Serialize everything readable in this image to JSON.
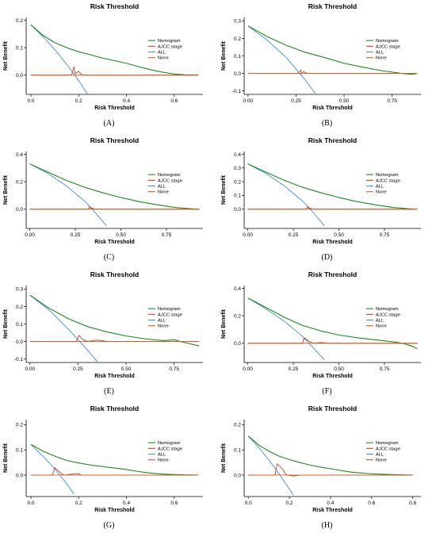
{
  "colors": {
    "nomogram": "#1a8c1a",
    "ajcc": "#c0441a",
    "all": "#3c8fd6",
    "none": "#d35a1e"
  },
  "chart_data": [
    {
      "type": "line",
      "title": "Risk Threshold",
      "xlabel": "Risk Threshold",
      "ylabel": "Net Benefit",
      "caption": "(A)",
      "xlim": [
        -0.02,
        0.72
      ],
      "ylim": [
        -0.07,
        0.21
      ],
      "xticks": [
        0.0,
        0.2,
        0.4,
        0.6
      ],
      "xtick_labels": [
        "0.0",
        "0.2",
        "0.4",
        "0.6"
      ],
      "yticks": [
        0.0,
        0.1,
        0.2
      ],
      "ytick_labels": [
        "0.0",
        "0.1",
        "0.2"
      ],
      "legend": [
        "Nomogram",
        "AJCC stage",
        "ALL",
        "None"
      ],
      "series": [
        {
          "name": "Nomogram",
          "x": [
            0.0,
            0.05,
            0.1,
            0.15,
            0.2,
            0.25,
            0.3,
            0.35,
            0.4,
            0.45,
            0.5,
            0.55,
            0.6,
            0.65,
            0.7
          ],
          "y": [
            0.183,
            0.145,
            0.118,
            0.1,
            0.085,
            0.074,
            0.062,
            0.053,
            0.043,
            0.031,
            0.02,
            0.011,
            0.004,
            0.001,
            0.001
          ]
        },
        {
          "name": "AJCC stage",
          "x": [
            0.0,
            0.17,
            0.18,
            0.185,
            0.19,
            0.2,
            0.21,
            0.22,
            0.7
          ],
          "y": [
            0.0,
            0.0,
            0.03,
            0.005,
            0.008,
            0.014,
            0.004,
            0.0,
            0.0
          ]
        },
        {
          "name": "ALL",
          "x": [
            0.0,
            0.05,
            0.1,
            0.15,
            0.2,
            0.24
          ],
          "y": [
            0.183,
            0.14,
            0.093,
            0.039,
            -0.02,
            -0.073
          ]
        },
        {
          "name": "None",
          "x": [
            0.0,
            0.7
          ],
          "y": [
            0.0,
            0.0
          ]
        }
      ]
    },
    {
      "type": "line",
      "title": "Risk Threshold",
      "xlabel": "Risk Threshold",
      "ylabel": "Net Benefit",
      "caption": "(B)",
      "xlim": [
        -0.02,
        0.9
      ],
      "ylim": [
        -0.12,
        0.32
      ],
      "xticks": [
        0.0,
        0.25,
        0.5,
        0.75
      ],
      "xtick_labels": [
        "0.00",
        "0.25",
        "0.50",
        "0.75"
      ],
      "yticks": [
        -0.1,
        0.0,
        0.1,
        0.2,
        0.3
      ],
      "ytick_labels": [
        "-0.1",
        "0.0",
        "0.1",
        "0.2",
        "0.3"
      ],
      "legend": [
        "Nomogram",
        "AJCC stage",
        "ALL",
        "None"
      ],
      "series": [
        {
          "name": "Nomogram",
          "x": [
            0.0,
            0.1,
            0.2,
            0.3,
            0.4,
            0.5,
            0.6,
            0.7,
            0.8,
            0.85,
            0.88
          ],
          "y": [
            0.272,
            0.21,
            0.16,
            0.12,
            0.09,
            0.058,
            0.035,
            0.015,
            0.0,
            -0.005,
            0.0
          ]
        },
        {
          "name": "AJCC stage",
          "x": [
            0.0,
            0.26,
            0.275,
            0.28,
            0.29,
            0.3,
            0.31,
            0.88
          ],
          "y": [
            0.0,
            0.0,
            0.02,
            0.003,
            0.01,
            0.004,
            0.0,
            0.0
          ]
        },
        {
          "name": "ALL",
          "x": [
            0.0,
            0.1,
            0.2,
            0.3,
            0.35
          ],
          "y": [
            0.272,
            0.19,
            0.09,
            -0.04,
            -0.115
          ]
        },
        {
          "name": "None",
          "x": [
            0.0,
            0.88
          ],
          "y": [
            0.0,
            0.0
          ]
        }
      ]
    },
    {
      "type": "line",
      "title": "Risk Threshold",
      "xlabel": "Risk Threshold",
      "ylabel": "Net Benefit",
      "caption": "(C)",
      "xlim": [
        -0.02,
        0.95
      ],
      "ylim": [
        -0.14,
        0.42
      ],
      "xticks": [
        0.0,
        0.25,
        0.5,
        0.75
      ],
      "xtick_labels": [
        "0.00",
        "0.25",
        "0.50",
        "0.75"
      ],
      "yticks": [
        0.0,
        0.2,
        0.4
      ],
      "ytick_labels": [
        "0.0",
        "0.2",
        "0.4"
      ],
      "legend": [
        "Nomogram",
        "AJCC stage",
        "ALL",
        "None"
      ],
      "series": [
        {
          "name": "Nomogram",
          "x": [
            0.0,
            0.1,
            0.2,
            0.3,
            0.4,
            0.5,
            0.6,
            0.7,
            0.8,
            0.9,
            0.93
          ],
          "y": [
            0.33,
            0.27,
            0.21,
            0.16,
            0.12,
            0.085,
            0.055,
            0.032,
            0.012,
            0.002,
            0.001
          ]
        },
        {
          "name": "AJCC stage",
          "x": [
            0.0,
            0.32,
            0.33,
            0.335,
            0.34,
            0.35,
            0.36,
            0.93
          ],
          "y": [
            0.0,
            0.0,
            0.02,
            0.003,
            0.01,
            0.003,
            0.0,
            0.0
          ]
        },
        {
          "name": "ALL",
          "x": [
            0.0,
            0.1,
            0.2,
            0.3,
            0.35,
            0.42
          ],
          "y": [
            0.33,
            0.26,
            0.17,
            0.06,
            -0.01,
            -0.12
          ]
        },
        {
          "name": "None",
          "x": [
            0.0,
            0.93
          ],
          "y": [
            0.0,
            0.0
          ]
        }
      ]
    },
    {
      "type": "line",
      "title": "Risk Threshold",
      "xlabel": "Risk Threshold",
      "ylabel": "Net Benefit",
      "caption": "(D)",
      "xlim": [
        -0.02,
        0.95
      ],
      "ylim": [
        -0.14,
        0.42
      ],
      "xticks": [
        0.0,
        0.25,
        0.5,
        0.75
      ],
      "xtick_labels": [
        "0.00",
        "0.25",
        "0.50",
        "0.75"
      ],
      "yticks": [
        0.0,
        0.1,
        0.2,
        0.3,
        0.4
      ],
      "ytick_labels": [
        "0.0",
        "0.1",
        "0.2",
        "0.3",
        "0.4"
      ],
      "legend": [
        "Nomogram",
        "AJCC stage",
        "ALL",
        "None"
      ],
      "series": [
        {
          "name": "Nomogram",
          "x": [
            0.0,
            0.1,
            0.2,
            0.3,
            0.4,
            0.5,
            0.6,
            0.7,
            0.8,
            0.9,
            0.93
          ],
          "y": [
            0.33,
            0.27,
            0.21,
            0.16,
            0.12,
            0.085,
            0.055,
            0.032,
            0.012,
            0.002,
            0.001
          ]
        },
        {
          "name": "AJCC stage",
          "x": [
            0.0,
            0.32,
            0.33,
            0.335,
            0.34,
            0.35,
            0.36,
            0.93
          ],
          "y": [
            0.0,
            0.0,
            0.02,
            0.003,
            0.01,
            0.003,
            0.0,
            0.0
          ]
        },
        {
          "name": "ALL",
          "x": [
            0.0,
            0.1,
            0.2,
            0.3,
            0.35,
            0.42
          ],
          "y": [
            0.33,
            0.26,
            0.17,
            0.06,
            -0.01,
            -0.12
          ]
        },
        {
          "name": "None",
          "x": [
            0.0,
            0.93
          ],
          "y": [
            0.0,
            0.0
          ]
        }
      ]
    },
    {
      "type": "line",
      "title": "Risk Threshold",
      "xlabel": "Risk Threshold",
      "ylabel": "Net Benefit",
      "caption": "(E)",
      "xlim": [
        -0.02,
        0.9
      ],
      "ylim": [
        -0.12,
        0.32
      ],
      "xticks": [
        0.0,
        0.25,
        0.5,
        0.75
      ],
      "xtick_labels": [
        "0.00",
        "0.25",
        "0.50",
        "0.75"
      ],
      "yticks": [
        -0.1,
        0.0,
        0.1,
        0.2,
        0.3
      ],
      "ytick_labels": [
        "-0.1",
        "0.0",
        "0.1",
        "0.2",
        "0.3"
      ],
      "legend": [
        "Nomogram",
        "AJCC stage",
        "ALL",
        "None"
      ],
      "series": [
        {
          "name": "Nomogram",
          "x": [
            0.0,
            0.1,
            0.2,
            0.3,
            0.4,
            0.5,
            0.6,
            0.7,
            0.75,
            0.8,
            0.88
          ],
          "y": [
            0.265,
            0.19,
            0.13,
            0.085,
            0.055,
            0.032,
            0.015,
            0.005,
            0.01,
            -0.005,
            -0.025
          ]
        },
        {
          "name": "AJCC stage",
          "x": [
            0.0,
            0.24,
            0.255,
            0.27,
            0.29,
            0.3,
            0.33,
            0.36,
            0.4,
            0.88
          ],
          "y": [
            0.0,
            0.0,
            0.035,
            0.015,
            0.005,
            0.0,
            0.006,
            0.008,
            0.0,
            0.0
          ]
        },
        {
          "name": "ALL",
          "x": [
            0.0,
            0.1,
            0.2,
            0.3,
            0.35
          ],
          "y": [
            0.265,
            0.18,
            0.07,
            -0.05,
            -0.115
          ]
        },
        {
          "name": "None",
          "x": [
            0.0,
            0.88
          ],
          "y": [
            0.0,
            0.0
          ]
        }
      ]
    },
    {
      "type": "line",
      "title": "Risk Threshold",
      "xlabel": "Risk Threshold",
      "ylabel": "Net Benefit",
      "caption": "(F)",
      "xlim": [
        -0.02,
        0.95
      ],
      "ylim": [
        -0.14,
        0.42
      ],
      "xticks": [
        0.0,
        0.25,
        0.5,
        0.75
      ],
      "xtick_labels": [
        "0.00",
        "0.25",
        "0.50",
        "0.75"
      ],
      "yticks": [
        0.0,
        0.2,
        0.4
      ],
      "ytick_labels": [
        "0.0",
        "0.2",
        "0.4"
      ],
      "legend": [
        "Nomogram",
        "AJCC stage",
        "ALL",
        "None"
      ],
      "series": [
        {
          "name": "Nomogram",
          "x": [
            0.0,
            0.1,
            0.2,
            0.3,
            0.4,
            0.5,
            0.6,
            0.7,
            0.8,
            0.85,
            0.9,
            0.93
          ],
          "y": [
            0.33,
            0.26,
            0.19,
            0.13,
            0.09,
            0.06,
            0.04,
            0.025,
            0.01,
            0.0,
            -0.02,
            -0.04
          ]
        },
        {
          "name": "AJCC stage",
          "x": [
            0.0,
            0.3,
            0.31,
            0.33,
            0.35,
            0.36,
            0.4,
            0.45,
            0.93
          ],
          "y": [
            0.0,
            0.0,
            0.04,
            0.02,
            0.005,
            0.0,
            0.005,
            0.0,
            0.0
          ]
        },
        {
          "name": "ALL",
          "x": [
            0.0,
            0.1,
            0.2,
            0.3,
            0.35,
            0.42
          ],
          "y": [
            0.33,
            0.25,
            0.16,
            0.05,
            -0.02,
            -0.12
          ]
        },
        {
          "name": "None",
          "x": [
            0.0,
            0.93
          ],
          "y": [
            0.0,
            0.0
          ]
        }
      ]
    },
    {
      "type": "line",
      "title": "Risk Threshold",
      "xlabel": "Risk Threshold",
      "ylabel": "Net Benefit",
      "caption": "(G)",
      "xlim": [
        -0.02,
        0.72
      ],
      "ylim": [
        -0.085,
        0.22
      ],
      "xticks": [
        0.0,
        0.2,
        0.4,
        0.6
      ],
      "xtick_labels": [
        "0.0",
        "0.2",
        "0.4",
        "0.6"
      ],
      "yticks": [
        0.0,
        0.1,
        0.2
      ],
      "ytick_labels": [
        "0.0",
        "0.1",
        "0.2"
      ],
      "legend": [
        "Nomogram",
        "AJCC stage",
        "ALL",
        "None"
      ],
      "series": [
        {
          "name": "Nomogram",
          "x": [
            0.0,
            0.05,
            0.1,
            0.15,
            0.2,
            0.25,
            0.3,
            0.35,
            0.4,
            0.45,
            0.5,
            0.55,
            0.6,
            0.65,
            0.7
          ],
          "y": [
            0.122,
            0.095,
            0.075,
            0.058,
            0.048,
            0.04,
            0.034,
            0.028,
            0.022,
            0.014,
            0.008,
            0.004,
            0.002,
            0.001,
            0.0
          ]
        },
        {
          "name": "AJCC stage",
          "x": [
            0.0,
            0.09,
            0.1,
            0.12,
            0.13,
            0.14,
            0.17,
            0.2,
            0.21,
            0.7
          ],
          "y": [
            0.0,
            0.0,
            0.03,
            0.012,
            0.004,
            0.0,
            0.004,
            0.006,
            0.0,
            0.0
          ]
        },
        {
          "name": "ALL",
          "x": [
            0.0,
            0.05,
            0.1,
            0.15,
            0.18
          ],
          "y": [
            0.122,
            0.075,
            0.025,
            -0.035,
            -0.075
          ]
        },
        {
          "name": "None",
          "x": [
            0.0,
            0.7
          ],
          "y": [
            0.0,
            0.0
          ]
        }
      ]
    },
    {
      "type": "line",
      "title": "Risk Threshold",
      "xlabel": "Risk Threshold",
      "ylabel": "Net Benefit",
      "caption": "(H)",
      "xlim": [
        -0.02,
        0.84
      ],
      "ylim": [
        -0.085,
        0.22
      ],
      "xticks": [
        0.0,
        0.2,
        0.4,
        0.6,
        0.8
      ],
      "xtick_labels": [
        "0.0",
        "0.2",
        "0.4",
        "0.6",
        "0.8"
      ],
      "yticks": [
        0.0,
        0.1,
        0.2
      ],
      "ytick_labels": [
        "0.0",
        "0.1",
        "0.2"
      ],
      "legend": [
        "Nomogram",
        "AJCC stage",
        "ALL",
        "None"
      ],
      "series": [
        {
          "name": "Nomogram",
          "x": [
            0.0,
            0.05,
            0.1,
            0.15,
            0.2,
            0.25,
            0.3,
            0.35,
            0.4,
            0.5,
            0.6,
            0.7,
            0.8
          ],
          "y": [
            0.155,
            0.12,
            0.095,
            0.075,
            0.062,
            0.05,
            0.04,
            0.032,
            0.025,
            0.012,
            0.005,
            0.002,
            0.0
          ]
        },
        {
          "name": "AJCC stage",
          "x": [
            0.0,
            0.13,
            0.14,
            0.16,
            0.17,
            0.18,
            0.19,
            0.22,
            0.25,
            0.8
          ],
          "y": [
            0.0,
            0.0,
            0.045,
            0.03,
            0.02,
            0.005,
            0.0,
            -0.004,
            0.0,
            0.0
          ]
        },
        {
          "name": "ALL",
          "x": [
            0.0,
            0.05,
            0.1,
            0.15,
            0.2,
            0.22
          ],
          "y": [
            0.155,
            0.11,
            0.06,
            0.005,
            -0.055,
            -0.08
          ]
        },
        {
          "name": "None",
          "x": [
            0.0,
            0.8
          ],
          "y": [
            0.0,
            0.0
          ]
        }
      ]
    }
  ]
}
